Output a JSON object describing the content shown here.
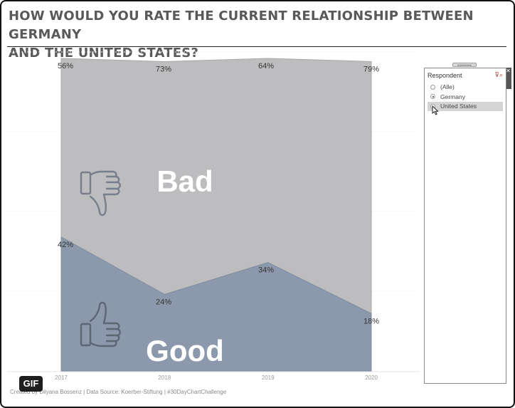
{
  "title": "HOW WOULD YOU RATE THE CURRENT RELATIONSHIP BETWEEN GERMANY\nAND THE UNITED STATES?",
  "footer": "Created by Dilyana Bossenz | Data Source: Koerber-Stiftung | #30DayChartChallenge",
  "gif_badge": "GIF",
  "colors": {
    "bad": "#bdbdbf",
    "good": "#8c99ac",
    "bad_stroke": "#a9a9ab",
    "good_stroke": "#7f8ca0"
  },
  "filter": {
    "title": "Respondent",
    "tools": "⊽⌕",
    "side_tab": "✕",
    "options": [
      {
        "label": "(Alle)",
        "checked": false,
        "hover": false
      },
      {
        "label": "Germany",
        "checked": true,
        "hover": false
      },
      {
        "label": "United States",
        "checked": false,
        "hover": true
      }
    ]
  },
  "chart_data": {
    "type": "area",
    "x": [
      "2017",
      "2018",
      "2019",
      "2020"
    ],
    "series": [
      {
        "name": "Good",
        "values": [
          42,
          24,
          34,
          18
        ],
        "labels": [
          "42%",
          "24%",
          "34%",
          "18%"
        ],
        "icon": "thumbs-up-icon"
      },
      {
        "name": "Bad",
        "values": [
          56,
          73,
          64,
          79
        ],
        "labels": [
          "56%",
          "73%",
          "64%",
          "79%"
        ],
        "icon": "thumbs-down-icon"
      }
    ],
    "stacked": true,
    "ylim": [
      0,
      100
    ],
    "grid": true,
    "title": "",
    "xlabel": "",
    "ylabel": ""
  }
}
